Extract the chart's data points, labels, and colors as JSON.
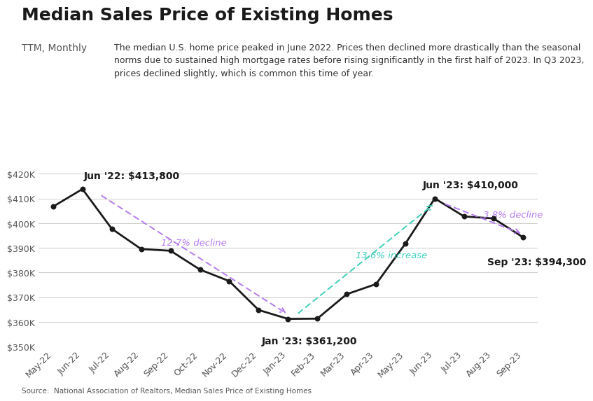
{
  "title": "Median Sales Price of Existing Homes",
  "subtitle": "TTM, Monthly",
  "description": "The median U.S. home price peaked in June 2022. Prices then declined more drastically than the seasonal\nnorms due to sustained high mortgage rates before rising significantly in the first half of 2023. In Q3 2023,\nprices declined slightly, which is common this time of year.",
  "source": "Source:  National Association of Realtors, Median Sales Price of Existing Homes",
  "months": [
    "May-22",
    "Jun-22",
    "Jul-22",
    "Aug-22",
    "Sep-22",
    "Oct-22",
    "Nov-22",
    "Dec-22",
    "Jan-23",
    "Feb-23",
    "Mar-23",
    "Apr-23",
    "May-23",
    "Jun-23",
    "Jul-23",
    "Aug-23",
    "Sep-23"
  ],
  "values": [
    406700,
    413800,
    397700,
    389500,
    388800,
    381200,
    376500,
    364800,
    361200,
    361300,
    371200,
    375300,
    391700,
    410000,
    402700,
    401900,
    394300
  ],
  "ylim": [
    350000,
    425000
  ],
  "yticks": [
    350000,
    360000,
    370000,
    380000,
    390000,
    400000,
    410000,
    420000
  ],
  "ytick_labels": [
    "$350K",
    "$360K",
    "$370K",
    "$380K",
    "$390K",
    "$400K",
    "$410K",
    "$420K"
  ],
  "line_color": "#1a1a1a",
  "dot_color": "#1a1a1a",
  "bg_color": "#ffffff",
  "grid_color": "#cccccc",
  "annotation_jun22": "Jun '22: $413,800",
  "annotation_jan23": "Jan '23: $361,200",
  "annotation_jun23": "Jun '23: $410,000",
  "annotation_sep23": "Sep '23: $394,300",
  "arrow_decline_color": "#b57bee",
  "arrow_increase_color": "#3ecfba",
  "arrow_decline2_color": "#b57bee",
  "decline_label": "12.7% decline",
  "increase_label": "13.6% increase",
  "decline2_label": "3.8% decline",
  "title_fontsize": 18,
  "subtitle_fontsize": 10,
  "desc_fontsize": 9,
  "annotation_fontsize": 10,
  "tick_fontsize": 9
}
